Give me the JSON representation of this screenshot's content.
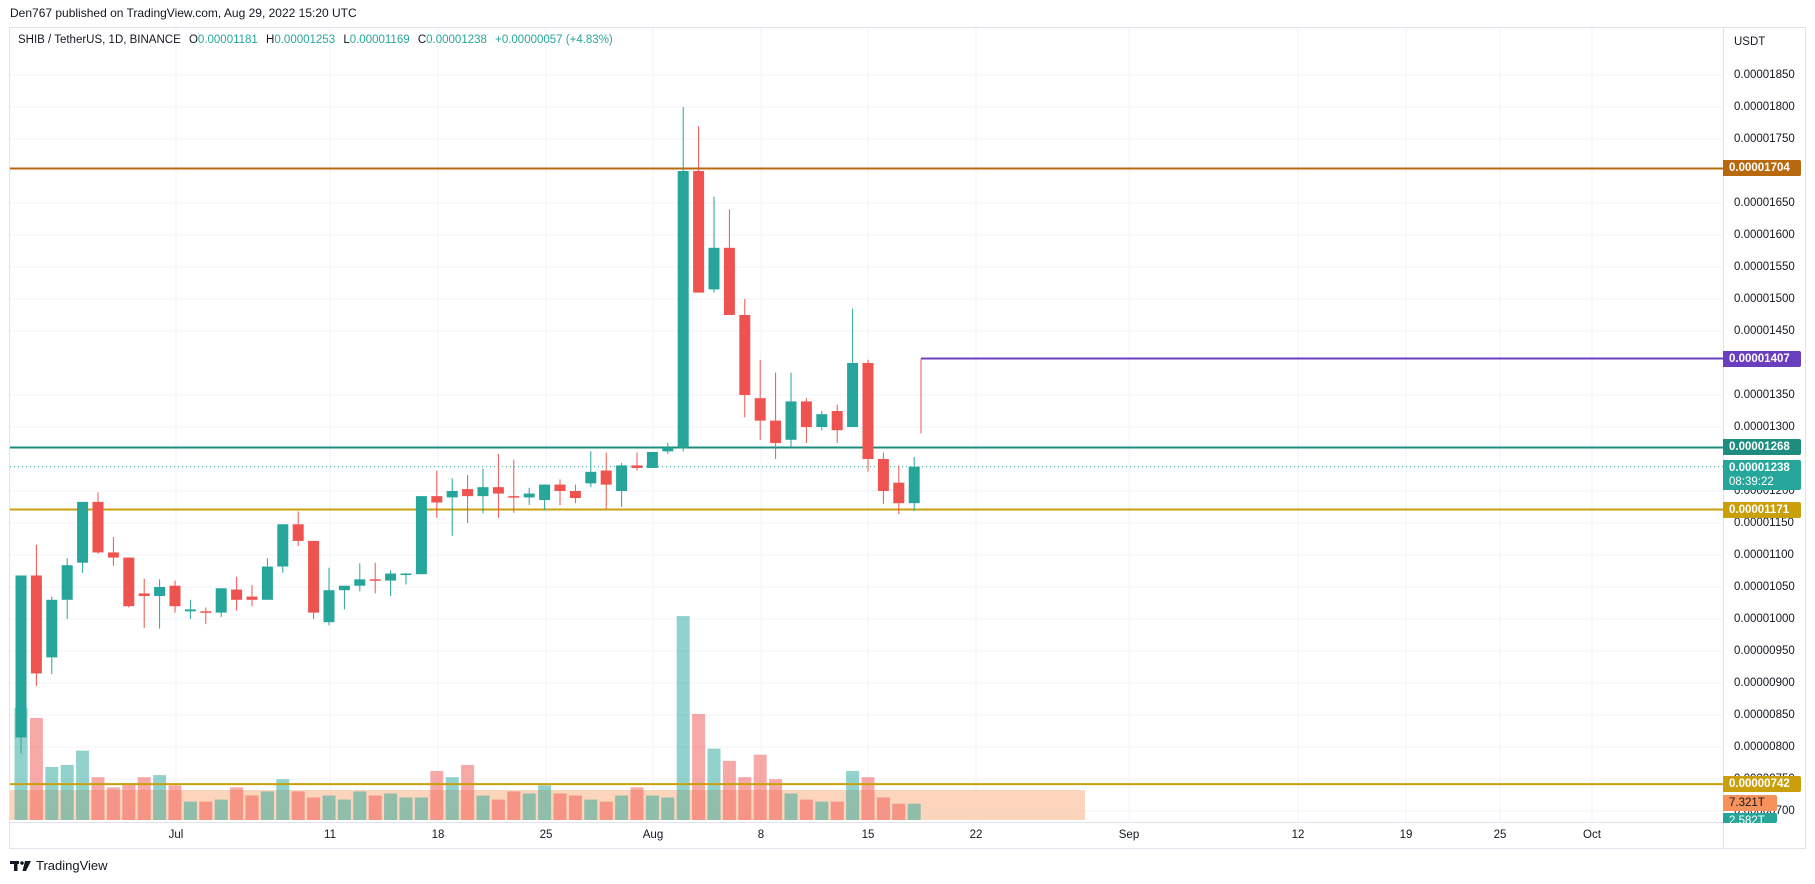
{
  "publisher": "Den767 published on TradingView.com, Aug 29, 2022 15:20 UTC",
  "legend": {
    "symbol": "SHIB / TetherUS, 1D, BINANCE",
    "o_label": "O",
    "o": "0.00001181",
    "h_label": "H",
    "h": "0.00001253",
    "l_label": "L",
    "l": "0.00001169",
    "c_label": "C",
    "c": "0.00001238",
    "change": "+0.00000057 (+4.83%)"
  },
  "axis": {
    "currency": "USDT",
    "y_ticks": [
      "0.00001850",
      "0.00001800",
      "0.00001750",
      "0.00001650",
      "0.00001600",
      "0.00001550",
      "0.00001500",
      "0.00001450",
      "0.00001350",
      "0.00001300",
      "0.00001200",
      "0.00001150",
      "0.00001100",
      "0.00001050",
      "0.00001000",
      "0.00000950",
      "0.00000900",
      "0.00000850",
      "0.00000800",
      "0.00000750",
      "0.00000700"
    ],
    "x_ticks": [
      "Jul",
      "11",
      "18",
      "25",
      "Aug",
      "8",
      "15",
      "22",
      "Sep",
      "12",
      "19",
      "25",
      "Oct"
    ]
  },
  "price_labels": {
    "resistance_high": {
      "text": "0.00001704",
      "color": "#b8690d"
    },
    "resistance_mid": {
      "text": "0.00001407",
      "color": "#6a3fbf"
    },
    "level_1268": {
      "text": "0.00001268",
      "color": "#1e8c7e"
    },
    "last_price": {
      "text": "0.00001238",
      "countdown": "08:39:22",
      "color": "#26a69a"
    },
    "support": {
      "text": "0.00001171",
      "color": "#c9a00c"
    },
    "support_low": {
      "text": "0.00000742",
      "color": "#c9a00c"
    },
    "vol_ma": {
      "text": "7.321T",
      "color": "#f7935a"
    },
    "vol_last": {
      "text": "2.582T",
      "color": "#26a69a"
    }
  },
  "footer": {
    "brand": "TradingView"
  },
  "colors": {
    "up": "#26a69a",
    "down": "#ef5350",
    "grid": "#f0f3fa"
  },
  "chart_data": {
    "type": "candlestick",
    "title": "SHIB / TetherUS, 1D, BINANCE",
    "ylabel": "USDT",
    "ylim": [
      6.8e-06,
      1.9e-05
    ],
    "start_date": "2022-06-21",
    "price_scale_e8": "values x 1e-8",
    "ohlc_e8": [
      [
        815,
        1068,
        790,
        1068
      ],
      [
        1068,
        1116,
        895,
        915
      ],
      [
        940,
        1035,
        914,
        1030
      ],
      [
        1030,
        1095,
        1000,
        1084
      ],
      [
        1088,
        1183,
        1072,
        1183
      ],
      [
        1183,
        1198,
        1102,
        1104
      ],
      [
        1104,
        1128,
        1083,
        1096
      ],
      [
        1096,
        1076,
        1018,
        1020
      ],
      [
        1040,
        1063,
        986,
        1036
      ],
      [
        1036,
        1062,
        985,
        1050
      ],
      [
        1052,
        1060,
        1010,
        1020
      ],
      [
        1012,
        1030,
        1000,
        1015
      ],
      [
        1012,
        1018,
        992,
        1010
      ],
      [
        1010,
        1048,
        1003,
        1048
      ],
      [
        1046,
        1066,
        1013,
        1030
      ],
      [
        1035,
        1053,
        1020,
        1030
      ],
      [
        1030,
        1095,
        1030,
        1082
      ],
      [
        1082,
        1148,
        1072,
        1148
      ],
      [
        1148,
        1168,
        1114,
        1122
      ],
      [
        1122,
        1120,
        1000,
        1010
      ],
      [
        995,
        1080,
        990,
        1045
      ],
      [
        1045,
        1052,
        1015,
        1052
      ],
      [
        1052,
        1087,
        1043,
        1062
      ],
      [
        1062,
        1088,
        1040,
        1060
      ],
      [
        1060,
        1076,
        1036,
        1071
      ],
      [
        1071,
        1072,
        1054,
        1071
      ],
      [
        1070,
        1186,
        1070,
        1192
      ],
      [
        1192,
        1232,
        1158,
        1182
      ],
      [
        1190,
        1220,
        1130,
        1200
      ],
      [
        1203,
        1225,
        1150,
        1192
      ],
      [
        1192,
        1235,
        1165,
        1206
      ],
      [
        1206,
        1258,
        1158,
        1196
      ],
      [
        1192,
        1249,
        1166,
        1190
      ],
      [
        1190,
        1205,
        1178,
        1196
      ],
      [
        1186,
        1200,
        1170,
        1210
      ],
      [
        1210,
        1218,
        1178,
        1200
      ],
      [
        1200,
        1210,
        1181,
        1189
      ],
      [
        1212,
        1262,
        1206,
        1230
      ],
      [
        1232,
        1260,
        1172,
        1210
      ],
      [
        1200,
        1244,
        1175,
        1240
      ],
      [
        1240,
        1260,
        1232,
        1236
      ],
      [
        1236,
        1248,
        1262,
        1261
      ],
      [
        1262,
        1275,
        1258,
        1268
      ],
      [
        1268,
        1800,
        1262,
        1700
      ],
      [
        1700,
        1770,
        1515,
        1510
      ],
      [
        1515,
        1660,
        1510,
        1580
      ],
      [
        1580,
        1640,
        1480,
        1475
      ],
      [
        1475,
        1500,
        1315,
        1350
      ],
      [
        1345,
        1405,
        1280,
        1310
      ],
      [
        1310,
        1385,
        1250,
        1275
      ],
      [
        1280,
        1385,
        1268,
        1340
      ],
      [
        1340,
        1345,
        1275,
        1300
      ],
      [
        1300,
        1325,
        1295,
        1320
      ],
      [
        1325,
        1335,
        1275,
        1295
      ],
      [
        1300,
        1485,
        1300,
        1400
      ],
      [
        1400,
        1405,
        1230,
        1250
      ],
      [
        1250,
        1260,
        1180,
        1200
      ],
      [
        1213,
        1240,
        1164,
        1181
      ],
      [
        1181,
        1253,
        1169,
        1238
      ]
    ],
    "volume_relative": [
      0.55,
      0.5,
      0.26,
      0.27,
      0.34,
      0.21,
      0.16,
      0.18,
      0.21,
      0.22,
      0.17,
      0.09,
      0.09,
      0.1,
      0.16,
      0.12,
      0.14,
      0.2,
      0.14,
      0.11,
      0.12,
      0.1,
      0.14,
      0.12,
      0.13,
      0.11,
      0.11,
      0.24,
      0.21,
      0.27,
      0.12,
      0.1,
      0.14,
      0.13,
      0.17,
      0.13,
      0.12,
      0.1,
      0.09,
      0.12,
      0.16,
      0.12,
      0.11,
      1.0,
      0.52,
      0.35,
      0.29,
      0.21,
      0.32,
      0.2,
      0.13,
      0.1,
      0.09,
      0.09,
      0.24,
      0.21,
      0.11,
      0.08,
      0.08
    ],
    "horizontal_levels": [
      {
        "price": 1.704e-05,
        "color": "#b8690d"
      },
      {
        "price": 1.407e-05,
        "color": "#6a3fbf",
        "from_date": "2022-08-18"
      },
      {
        "price": 1.268e-05,
        "color": "#1e8c7e"
      },
      {
        "price": 1.171e-05,
        "color": "#c9a00c"
      },
      {
        "price": 7.42e-06,
        "color": "#c9a00c"
      }
    ],
    "last_price": 1.238e-05
  }
}
